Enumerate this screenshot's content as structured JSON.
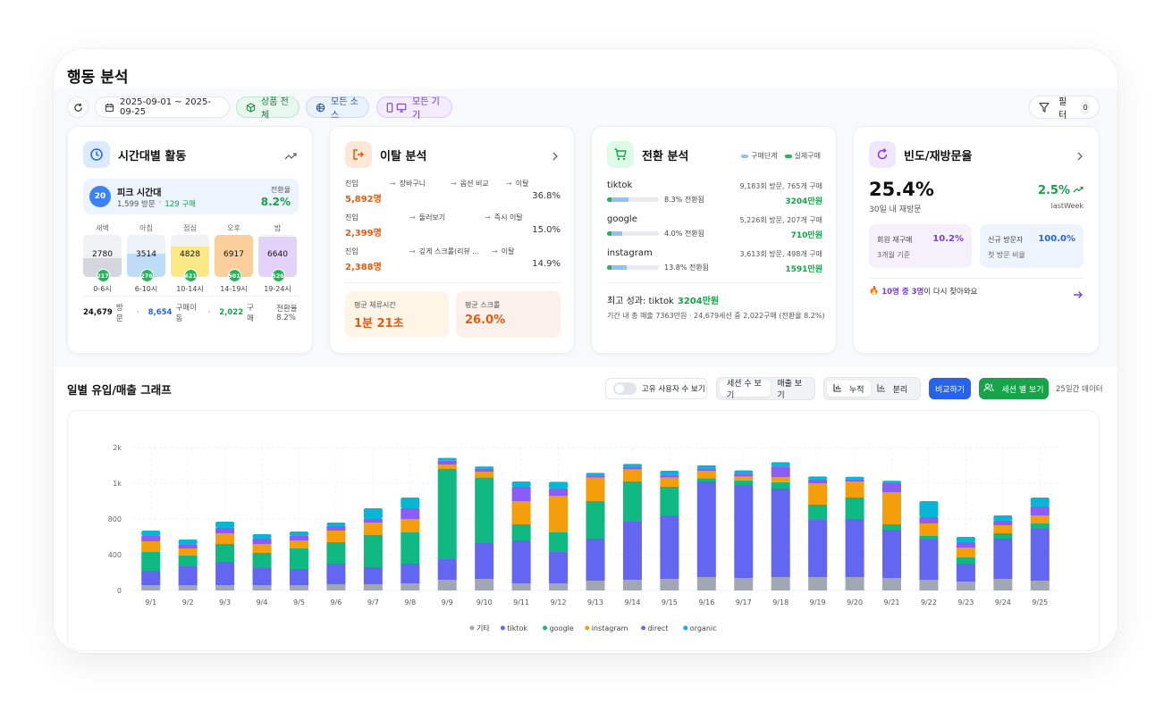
{
  "page": {
    "title": "행동 분석"
  },
  "toolbar": {
    "date_range": "2025-09-01 ~ 2025-09-25",
    "product_label": "상품 전체",
    "source_label": "모든 소스",
    "device_label": "모든 기기",
    "filter_label": "필터",
    "filter_count": "0"
  },
  "time_card": {
    "title": "시간대별 활동",
    "peak_badge": "20",
    "peak_title": "피크 시간대",
    "peak_visits": "1,599 방문",
    "peak_sep": "·",
    "peak_buys": "129 구매",
    "conv_label": "전환율",
    "conv_value": "8.2%",
    "slots": [
      {
        "name": "새벽",
        "value": "2780",
        "badge": "217",
        "range": "0-6시",
        "fill": 0.45,
        "color": "#d4d8de",
        "bg": "#f1f2f4"
      },
      {
        "name": "아침",
        "value": "3514",
        "badge": "276",
        "range": "6-10시",
        "fill": 0.55,
        "color": "#bfdcf7",
        "bg": "#eef3f9"
      },
      {
        "name": "점심",
        "value": "4828",
        "badge": "421",
        "range": "10-14시",
        "fill": 0.72,
        "color": "#fbe985",
        "bg": "#f1f2f4"
      },
      {
        "name": "오후",
        "value": "6917",
        "badge": "501",
        "range": "14-19시",
        "fill": 1.0,
        "color": "#fbcf9c",
        "bg": "#f1f2f4"
      },
      {
        "name": "밤",
        "value": "6640",
        "badge": "526",
        "range": "19-24시",
        "fill": 0.96,
        "color": "#e3d2fa",
        "bg": "#f1f2f4"
      }
    ],
    "footer_visits_num": "24,679",
    "footer_visits_label": "방문",
    "footer_moves_num": "8,654",
    "footer_moves_label": "구매이동",
    "footer_buys_num": "2,022",
    "footer_buys_label": "구매",
    "footer_conv": "전환율 8.2%",
    "dot": "·"
  },
  "exit_card": {
    "title": "이탈 분석",
    "rows": [
      {
        "start": "진입",
        "steps": [
          "장바구니",
          "옵션 비교",
          "이탈"
        ],
        "count": "5,892명",
        "pct": "36.8%"
      },
      {
        "start": "진입",
        "steps": [
          "둘러보기",
          "즉시 이탈"
        ],
        "count": "2,399명",
        "pct": "15.0%"
      },
      {
        "start": "진입",
        "steps": [
          "깊게 스크롤(리뷰 ...",
          "이탈"
        ],
        "count": "2,388명",
        "pct": "14.9%"
      }
    ],
    "stay_label": "평균 체류시간",
    "stay_value": "1분 21초",
    "scroll_label": "평균 스크롤",
    "scroll_value": "26.0%"
  },
  "conv_card": {
    "title": "전환 분석",
    "legend_stage": "구매단계",
    "legend_buy": "실제구매",
    "rows": [
      {
        "name": "tiktok",
        "meta": "9,183회 방문, 765개 구매",
        "rate": "8.3% 전환됨",
        "revenue": "3204만원",
        "fill": 0.42
      },
      {
        "name": "google",
        "meta": "5,226회 방문, 207개 구매",
        "rate": "4.0% 전환됨",
        "revenue": "710만원",
        "fill": 0.3
      },
      {
        "name": "instagram",
        "meta": "3,613회 방문, 498개 구매",
        "rate": "13.8% 전환됨",
        "revenue": "1591만원",
        "fill": 0.38
      }
    ],
    "best_prefix": "최고 성과: tiktok",
    "best_value": "3204만원",
    "best_sub": "기간 내 총 매출 7363만원 · 24,679세션 중 2,022구매 (전환율 8.2%)"
  },
  "freq_card": {
    "title": "빈도/재방문율",
    "main_value": "25.4%",
    "main_sub": "30일 내 재방문",
    "delta": "2.5%",
    "delta_sub": "lastWeek",
    "box1_label": "회원 재구매",
    "box1_value": "10.2%",
    "box1_sub": "3개월 기준",
    "box2_label": "신규 방문자",
    "box2_value": "100.0%",
    "box2_sub": "첫 방문 비율",
    "note_a": "10명 중 3명",
    "note_b": "이 다시 찾아와요"
  },
  "graph_section": {
    "title": "일별 유입/매출 그래프",
    "toggle_label": "고유 사용자 수 보기",
    "seg_session": "세션 수 보기",
    "seg_revenue": "매출 보기",
    "stack_label": "누적",
    "split_label": "분리",
    "compare_label": "비교하기",
    "session_view_label": "세션 별 보기",
    "days_label": "25일간 데이터"
  },
  "chart_data": {
    "type": "bar",
    "stacked": true,
    "categories": [
      "9/1",
      "9/2",
      "9/3",
      "9/4",
      "9/5",
      "9/6",
      "9/7",
      "9/8",
      "9/9",
      "9/10",
      "9/11",
      "9/12",
      "9/13",
      "9/14",
      "9/15",
      "9/16",
      "9/17",
      "9/18",
      "9/19",
      "9/20",
      "9/21",
      "9/22",
      "9/23",
      "9/24",
      "9/25"
    ],
    "y_ticks": [
      "0",
      "400",
      "800",
      "1k",
      "2k"
    ],
    "legend_position": "bottom",
    "grid": true,
    "series": [
      {
        "name": "기타",
        "color": "#a1a7b3",
        "values": [
          60,
          60,
          60,
          60,
          60,
          70,
          70,
          80,
          120,
          130,
          80,
          80,
          110,
          120,
          130,
          150,
          140,
          150,
          150,
          150,
          140,
          120,
          100,
          130,
          110
        ]
      },
      {
        "name": "tiktok",
        "color": "#6366f1",
        "values": [
          160,
          210,
          260,
          190,
          180,
          230,
          190,
          220,
          230,
          400,
          480,
          350,
          470,
          650,
          690,
          900,
          850,
          820,
          640,
          650,
          540,
          450,
          200,
          450,
          580
        ]
      },
      {
        "name": "google",
        "color": "#10b981",
        "values": [
          210,
          120,
          200,
          170,
          230,
          240,
          360,
          350,
          1050,
          630,
          180,
          220,
          320,
          280,
          160,
          90,
          90,
          60,
          90,
          120,
          60,
          40,
          70,
          60,
          60
        ]
      },
      {
        "name": "instagram",
        "color": "#f59e0b",
        "values": [
          120,
          80,
          120,
          100,
          90,
          130,
          140,
          150,
          120,
          160,
          160,
          280,
          260,
          340,
          180,
          210,
          110,
          140,
          120,
          130,
          210,
          140,
          110,
          90,
          70
        ]
      },
      {
        "name": "direct",
        "color": "#8b5cf6",
        "values": [
          60,
          40,
          60,
          60,
          50,
          50,
          40,
          60,
          110,
          90,
          80,
          40,
          60,
          70,
          80,
          60,
          80,
          300,
          100,
          60,
          60,
          60,
          60,
          50,
          50
        ]
      },
      {
        "name": "organic",
        "color": "#06b6d4",
        "values": [
          60,
          60,
          70,
          50,
          50,
          40,
          60,
          60,
          80,
          60,
          70,
          70,
          70,
          80,
          110,
          90,
          90,
          120,
          90,
          70,
          60,
          90,
          60,
          40,
          50
        ]
      }
    ]
  }
}
